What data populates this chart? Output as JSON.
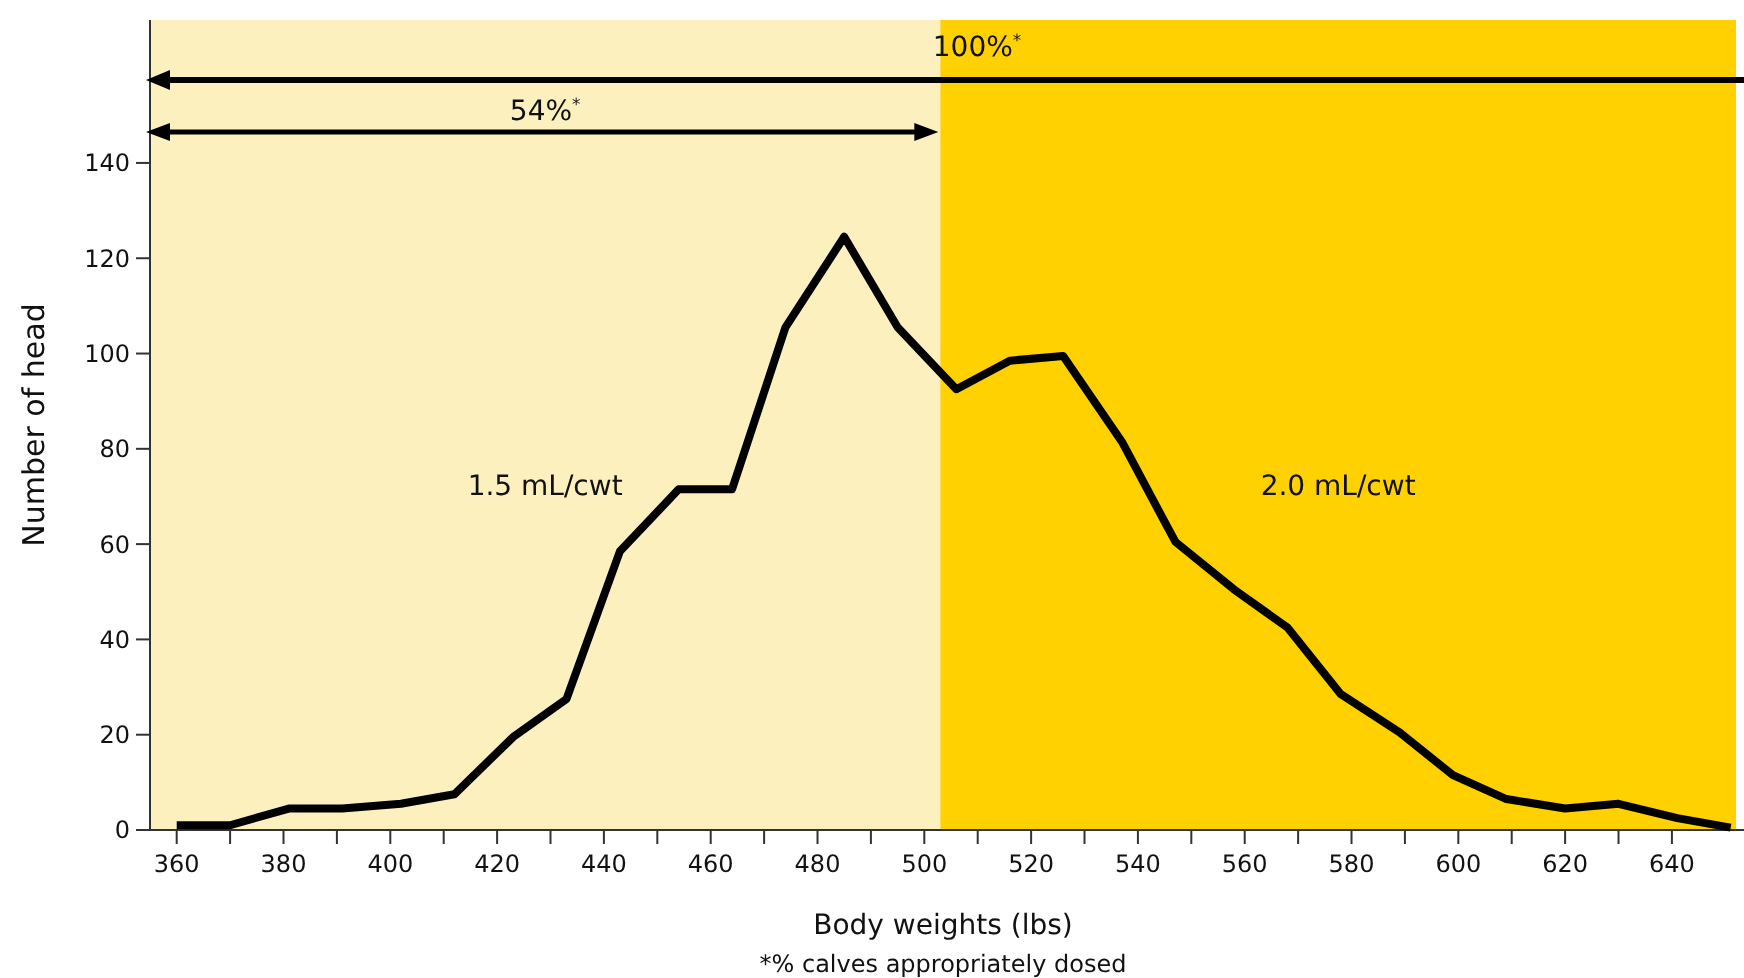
{
  "chart_data": {
    "type": "line",
    "xlabel": "Body weights (lbs)",
    "ylabel": "Number of head",
    "x": [
      360,
      370,
      381,
      391,
      402,
      412,
      423,
      433,
      443,
      454,
      464,
      474,
      485,
      495,
      506,
      516,
      526,
      537,
      547,
      558,
      568,
      578,
      589,
      599,
      609,
      620,
      630,
      641,
      651
    ],
    "series": [
      {
        "color": "#000000",
        "values": [
          1,
          1,
          4.5,
          4.5,
          5.5,
          7.5,
          19.5,
          27.5,
          58.5,
          71.5,
          71.5,
          105.5,
          124.5,
          105.5,
          92.5,
          98.5,
          99.5,
          81.5,
          60.5,
          50.5,
          42.5,
          28.5,
          20.5,
          11.5,
          6.5,
          4.5,
          5.5,
          2.5,
          0.5
        ]
      }
    ],
    "xlim": [
      355,
      652
    ],
    "ylim": [
      0,
      170
    ],
    "xticks": [
      360,
      {
        "value": 370,
        "label": null
      },
      380,
      {
        "value": 390,
        "label": null
      },
      400,
      {
        "value": 410,
        "label": null
      },
      420,
      {
        "value": 430,
        "label": null
      },
      440,
      {
        "value": 450,
        "label": null
      },
      460,
      {
        "value": 470,
        "label": null
      },
      480,
      {
        "value": 490,
        "label": null
      },
      500,
      {
        "value": 510,
        "label": null
      },
      520,
      {
        "value": 530,
        "label": null
      },
      540,
      {
        "value": 550,
        "label": null
      },
      560,
      {
        "value": 570,
        "label": null
      },
      580,
      {
        "value": 590,
        "label": null
      },
      600,
      {
        "value": 610,
        "label": null
      },
      620,
      {
        "value": 630,
        "label": null
      },
      640
    ],
    "yticks": [
      0,
      20,
      40,
      60,
      80,
      100,
      120,
      140
    ],
    "bands": [
      {
        "axis": "x",
        "from": 355,
        "to": 503,
        "label": "1.5 mL/cwt",
        "color": "#fdf0bf"
      },
      {
        "axis": "x",
        "from": 503,
        "to": 652,
        "label": "2.0 mL/cwt",
        "color": "#ffd100"
      }
    ],
    "annotations": [
      "100%$^{*}$",
      "54%$^{*}$",
      "*% calves appropriately dosed"
    ],
    "grid": false,
    "marker": "none",
    "line_style": "solid"
  }
}
